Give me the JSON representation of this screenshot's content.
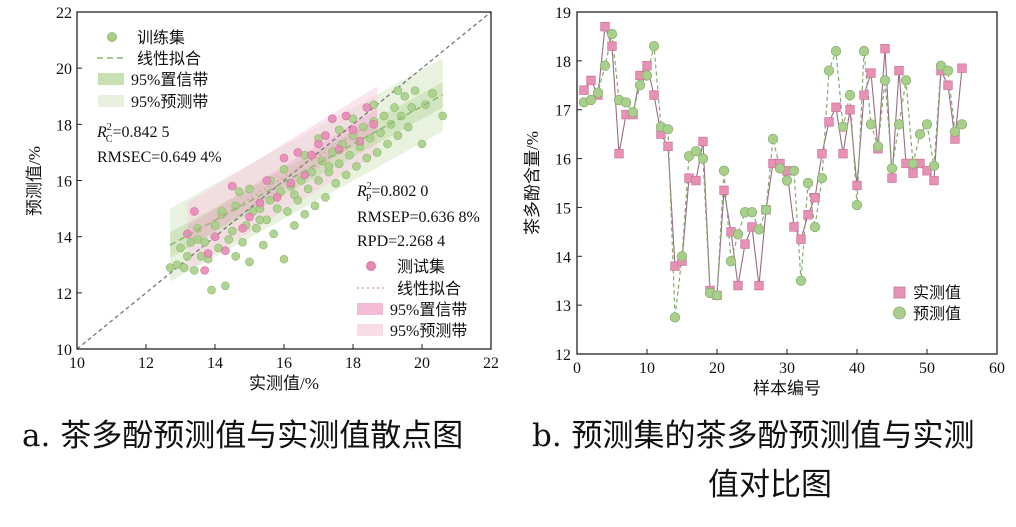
{
  "captions": {
    "a": "a. 茶多酚预测值与实测值散点图",
    "b_line1": "b. 预测集的茶多酚预测值与实测",
    "b_line2": "值对比图"
  },
  "colors": {
    "train": "#a9cf8a",
    "train_fit": "#8fb86e",
    "test": "#e889b6",
    "test_fit": "#d7a7a0",
    "measured": "#e791b4",
    "predicted": "#a8cf8b",
    "identity": "#777777"
  },
  "chart_data": [
    {
      "id": "a",
      "type": "scatter",
      "xlabel": "实测值/%",
      "ylabel": "预测值/%",
      "xlim": [
        10,
        22
      ],
      "ylim": [
        10,
        22
      ],
      "xticks": [
        "10",
        "12",
        "14",
        "16",
        "18",
        "20",
        "22"
      ],
      "yticks": [
        "10",
        "12",
        "14",
        "16",
        "18",
        "20",
        "22"
      ],
      "legend_train": [
        "训练集",
        "线性拟合",
        "95%置信带",
        "95%预测带"
      ],
      "legend_test": [
        "测试集",
        "线性拟合",
        "95%置信带",
        "95%预测带"
      ],
      "stats_train": {
        "r2_label": "R",
        "r2_sub": "C",
        "r2_sup": "2",
        "r2_value": "=0.842 5",
        "rmse": "RMSEC=0.649 4%"
      },
      "stats_test": {
        "r2_label": "R",
        "r2_sub": "P",
        "r2_sup": "2",
        "r2_value": "=0.802 0",
        "rmse": "RMSEP=0.636 8%",
        "rpd": "RPD=2.268 4"
      },
      "train_fit": {
        "x0": 12.7,
        "y0": 13.7,
        "x1": 20.6,
        "y1": 19.05
      },
      "test_fit": {
        "x0": 13.2,
        "y0": 14.0,
        "x1": 18.7,
        "y1": 18.15
      },
      "train_points": [
        [
          12.7,
          12.9
        ],
        [
          12.9,
          13.0
        ],
        [
          13.0,
          13.6
        ],
        [
          13.1,
          12.9
        ],
        [
          13.2,
          13.3
        ],
        [
          13.3,
          13.8
        ],
        [
          13.4,
          12.8
        ],
        [
          13.5,
          13.9
        ],
        [
          13.6,
          13.3
        ],
        [
          13.7,
          13.8
        ],
        [
          13.8,
          13.2
        ],
        [
          13.9,
          12.1
        ],
        [
          14.0,
          14.4
        ],
        [
          14.1,
          13.6
        ],
        [
          14.2,
          14.8
        ],
        [
          14.3,
          12.25
        ],
        [
          14.4,
          13.9
        ],
        [
          14.5,
          14.2
        ],
        [
          14.6,
          13.3
        ],
        [
          14.7,
          15.6
        ],
        [
          14.8,
          13.8
        ],
        [
          14.9,
          14.4
        ],
        [
          15.0,
          13.1
        ],
        [
          15.1,
          14.9
        ],
        [
          15.2,
          14.3
        ],
        [
          15.3,
          15.0
        ],
        [
          15.4,
          13.7
        ],
        [
          15.5,
          14.6
        ],
        [
          15.6,
          15.3
        ],
        [
          15.7,
          14.1
        ],
        [
          15.8,
          15.0
        ],
        [
          15.9,
          15.6
        ],
        [
          16.0,
          13.2
        ],
        [
          16.1,
          14.9
        ],
        [
          16.2,
          15.8
        ],
        [
          16.3,
          14.4
        ],
        [
          16.4,
          15.3
        ],
        [
          16.5,
          16.0
        ],
        [
          16.6,
          14.8
        ],
        [
          16.7,
          15.7
        ],
        [
          16.8,
          16.3
        ],
        [
          16.9,
          15.1
        ],
        [
          17.0,
          16.0
        ],
        [
          17.1,
          16.7
        ],
        [
          17.2,
          15.4
        ],
        [
          17.3,
          16.3
        ],
        [
          17.4,
          17.0
        ],
        [
          17.5,
          15.9
        ],
        [
          17.6,
          16.6
        ],
        [
          17.7,
          17.3
        ],
        [
          17.8,
          16.2
        ],
        [
          17.9,
          16.9
        ],
        [
          18.0,
          17.6
        ],
        [
          18.1,
          16.5
        ],
        [
          18.2,
          17.2
        ],
        [
          18.3,
          17.9
        ],
        [
          18.4,
          16.8
        ],
        [
          18.5,
          17.5
        ],
        [
          18.6,
          18.1
        ],
        [
          18.7,
          17.0
        ],
        [
          18.8,
          17.7
        ],
        [
          18.9,
          18.3
        ],
        [
          19.0,
          17.3
        ],
        [
          19.1,
          18.0
        ],
        [
          19.2,
          18.6
        ],
        [
          19.3,
          17.6
        ],
        [
          19.4,
          18.3
        ],
        [
          19.5,
          19.0
        ],
        [
          19.6,
          17.9
        ],
        [
          19.7,
          18.6
        ],
        [
          19.8,
          19.2
        ],
        [
          20.0,
          17.3
        ],
        [
          20.1,
          18.7
        ],
        [
          20.3,
          19.1
        ],
        [
          20.6,
          18.3
        ],
        [
          15.0,
          15.7
        ],
        [
          14.2,
          14.9
        ],
        [
          16.0,
          16.4
        ],
        [
          17.0,
          17.5
        ],
        [
          18.0,
          18.2
        ],
        [
          13.5,
          14.3
        ],
        [
          14.6,
          15.1
        ],
        [
          15.6,
          16.0
        ],
        [
          16.6,
          16.9
        ],
        [
          17.6,
          17.8
        ],
        [
          18.6,
          18.7
        ],
        [
          19.3,
          19.2
        ],
        [
          15.3,
          14.6
        ],
        [
          16.3,
          15.5
        ],
        [
          17.3,
          16.5
        ]
      ],
      "test_points": [
        [
          13.2,
          14.1
        ],
        [
          13.4,
          14.9
        ],
        [
          13.7,
          12.8
        ],
        [
          13.8,
          13.4
        ],
        [
          14.0,
          14.0
        ],
        [
          14.3,
          13.5
        ],
        [
          14.5,
          15.8
        ],
        [
          14.8,
          14.3
        ],
        [
          15.0,
          14.7
        ],
        [
          15.3,
          15.2
        ],
        [
          15.5,
          16.0
        ],
        [
          15.8,
          15.4
        ],
        [
          16.0,
          16.8
        ],
        [
          16.2,
          15.9
        ],
        [
          16.4,
          17.0
        ],
        [
          16.6,
          16.2
        ],
        [
          16.8,
          16.9
        ],
        [
          17.0,
          17.3
        ],
        [
          17.2,
          17.6
        ],
        [
          17.4,
          18.2
        ],
        [
          17.6,
          17.1
        ],
        [
          17.8,
          18.3
        ],
        [
          18.0,
          17.8
        ],
        [
          18.2,
          17.4
        ],
        [
          18.4,
          18.6
        ],
        [
          18.6,
          18.0
        ]
      ]
    },
    {
      "id": "b",
      "type": "line",
      "xlabel": "样本编号",
      "ylabel": "茶多酚含量/%",
      "xlim": [
        0,
        60
      ],
      "ylim": [
        12,
        19
      ],
      "xticks": [
        "0",
        "10",
        "20",
        "30",
        "40",
        "50",
        "60"
      ],
      "yticks": [
        "12",
        "13",
        "14",
        "15",
        "16",
        "17",
        "18",
        "19"
      ],
      "legend": [
        "实测值",
        "预测值"
      ],
      "x": [
        1,
        2,
        3,
        4,
        5,
        6,
        7,
        8,
        9,
        10,
        11,
        12,
        13,
        14,
        15,
        16,
        17,
        18,
        19,
        20,
        21,
        22,
        23,
        24,
        25,
        26,
        27,
        28,
        29,
        30,
        31,
        32,
        33,
        34,
        35,
        36,
        37,
        38,
        39,
        40,
        41,
        42,
        43,
        44,
        45,
        46,
        47,
        48,
        49,
        50,
        51,
        52,
        53,
        54,
        55
      ],
      "series": [
        {
          "name": "实测值",
          "values": [
            17.4,
            17.6,
            17.3,
            18.7,
            18.3,
            16.1,
            16.9,
            16.9,
            17.7,
            17.9,
            17.3,
            16.5,
            16.25,
            13.8,
            13.9,
            15.6,
            15.55,
            16.35,
            13.3,
            13.2,
            15.35,
            14.5,
            13.4,
            14.25,
            14.6,
            13.4,
            14.95,
            15.9,
            15.9,
            15.75,
            14.6,
            14.35,
            14.85,
            15.2,
            16.1,
            16.75,
            17.05,
            16.1,
            17.0,
            15.45,
            17.3,
            17.75,
            16.2,
            18.25,
            15.6,
            17.8,
            15.9,
            15.7,
            15.9,
            15.75,
            15.55,
            17.8,
            17.5,
            16.4,
            17.85
          ]
        },
        {
          "name": "预测值",
          "values": [
            17.15,
            17.2,
            17.35,
            17.9,
            18.55,
            17.2,
            17.15,
            16.95,
            17.5,
            17.7,
            18.3,
            16.65,
            16.6,
            12.75,
            14.0,
            16.05,
            16.15,
            16.0,
            13.25,
            13.2,
            15.75,
            13.9,
            14.45,
            14.9,
            14.9,
            14.55,
            14.95,
            16.4,
            15.8,
            15.55,
            15.75,
            13.5,
            15.5,
            14.6,
            15.6,
            17.8,
            18.2,
            16.65,
            17.3,
            15.05,
            18.2,
            16.7,
            16.25,
            17.6,
            15.8,
            16.7,
            17.6,
            15.9,
            16.5,
            16.7,
            15.85,
            17.9,
            17.8,
            16.55,
            16.7
          ]
        }
      ]
    }
  ]
}
